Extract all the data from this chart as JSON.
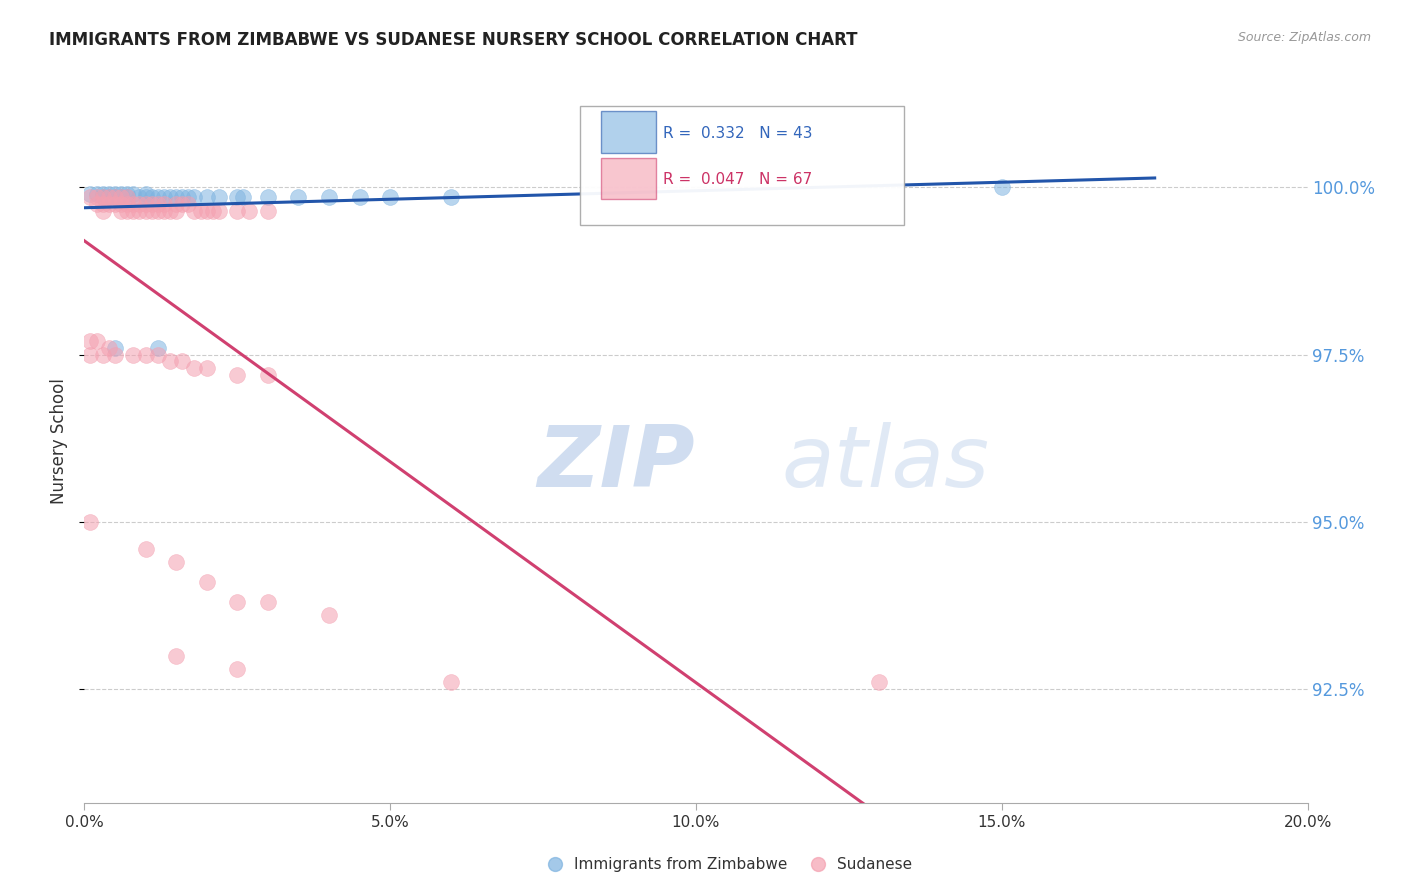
{
  "title": "IMMIGRANTS FROM ZIMBABWE VS SUDANESE NURSERY SCHOOL CORRELATION CHART",
  "source": "Source: ZipAtlas.com",
  "ylabel": "Nursery School",
  "ytick_values": [
    1.0,
    0.975,
    0.95,
    0.925
  ],
  "xlim": [
    0.0,
    0.2
  ],
  "ylim": [
    0.908,
    1.016
  ],
  "blue_color": "#7EB3E0",
  "pink_color": "#F4A0B0",
  "blue_line_color": "#2255AA",
  "pink_line_color": "#D04070",
  "background_color": "#FFFFFF",
  "grid_color": "#CCCCCC",
  "blue_x": [
    0.001,
    0.002,
    0.003,
    0.003,
    0.004,
    0.004,
    0.005,
    0.005,
    0.006,
    0.006,
    0.007,
    0.007,
    0.008,
    0.009,
    0.01,
    0.01,
    0.011,
    0.012,
    0.013,
    0.014,
    0.015,
    0.016,
    0.017,
    0.018,
    0.02,
    0.022,
    0.025,
    0.026,
    0.03,
    0.035,
    0.04,
    0.045,
    0.05,
    0.06,
    0.005,
    0.012,
    0.15
  ],
  "blue_y": [
    0.999,
    0.999,
    0.999,
    0.9985,
    0.999,
    0.9985,
    0.999,
    0.9985,
    0.999,
    0.9985,
    0.999,
    0.9985,
    0.999,
    0.9985,
    0.999,
    0.9985,
    0.9985,
    0.9985,
    0.9985,
    0.9985,
    0.9985,
    0.9985,
    0.9985,
    0.9985,
    0.9985,
    0.9985,
    0.9985,
    0.9985,
    0.9985,
    0.9985,
    0.9985,
    0.9985,
    0.9985,
    0.9985,
    0.976,
    0.976,
    1.0
  ],
  "pink_x": [
    0.001,
    0.002,
    0.002,
    0.003,
    0.003,
    0.003,
    0.004,
    0.004,
    0.005,
    0.005,
    0.006,
    0.006,
    0.006,
    0.007,
    0.007,
    0.007,
    0.008,
    0.008,
    0.009,
    0.009,
    0.01,
    0.01,
    0.011,
    0.011,
    0.012,
    0.012,
    0.013,
    0.013,
    0.014,
    0.015,
    0.015,
    0.016,
    0.017,
    0.018,
    0.019,
    0.02,
    0.021,
    0.022,
    0.025,
    0.027,
    0.03,
    0.001,
    0.001,
    0.002,
    0.003,
    0.004,
    0.005,
    0.008,
    0.01,
    0.012,
    0.014,
    0.016,
    0.018,
    0.02,
    0.025,
    0.03,
    0.001,
    0.01,
    0.015,
    0.02,
    0.025,
    0.03,
    0.04,
    0.015,
    0.025,
    0.06,
    0.13
  ],
  "pink_y": [
    0.9985,
    0.9985,
    0.9975,
    0.9985,
    0.9975,
    0.9965,
    0.9985,
    0.9975,
    0.9985,
    0.9975,
    0.9985,
    0.9975,
    0.9965,
    0.9985,
    0.9975,
    0.9965,
    0.9975,
    0.9965,
    0.9975,
    0.9965,
    0.9975,
    0.9965,
    0.9975,
    0.9965,
    0.9975,
    0.9965,
    0.9975,
    0.9965,
    0.9965,
    0.9975,
    0.9965,
    0.9975,
    0.9975,
    0.9965,
    0.9965,
    0.9965,
    0.9965,
    0.9965,
    0.9965,
    0.9965,
    0.9965,
    0.977,
    0.975,
    0.977,
    0.975,
    0.976,
    0.975,
    0.975,
    0.975,
    0.975,
    0.974,
    0.974,
    0.973,
    0.973,
    0.972,
    0.972,
    0.95,
    0.946,
    0.944,
    0.941,
    0.938,
    0.938,
    0.936,
    0.93,
    0.928,
    0.926,
    0.926
  ]
}
